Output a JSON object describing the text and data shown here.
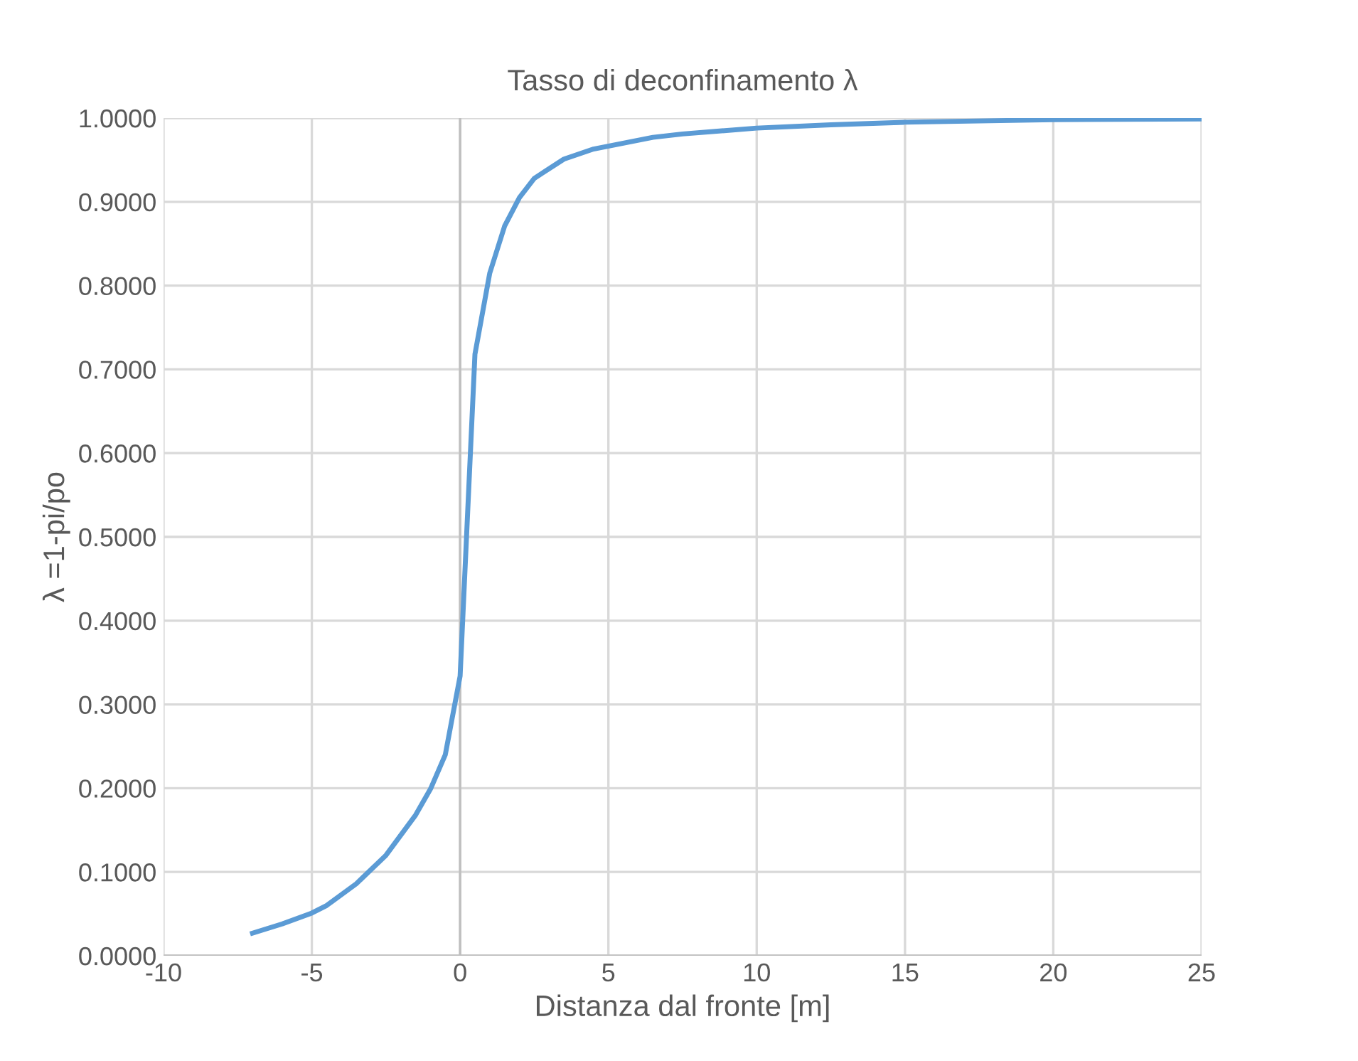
{
  "chart_data": {
    "type": "line",
    "title": "Tasso di deconfinamento λ",
    "xlabel": "Distanza dal fronte [m]",
    "ylabel": "λ =1-pi/po",
    "x": [
      -7,
      -6,
      -5,
      -4.5,
      -3.5,
      -2.5,
      -1.5,
      -1,
      -0.5,
      0,
      0.5,
      1,
      1.5,
      2,
      2.5,
      3.5,
      4.5,
      6.5,
      7.5,
      10,
      12.5,
      15,
      20,
      25
    ],
    "series": [
      {
        "color": "#5b9bd5",
        "values": [
          0.027,
          0.038,
          0.051,
          0.06,
          0.086,
          0.12,
          0.168,
          0.199,
          0.24,
          0.334,
          0.718,
          0.815,
          0.871,
          0.905,
          0.928,
          0.951,
          0.963,
          0.977,
          0.981,
          0.988,
          0.992,
          0.995,
          0.998,
          0.999
        ]
      }
    ],
    "xlim": [
      -10,
      25
    ],
    "xticks": [
      -10,
      -5,
      0,
      5,
      10,
      15,
      20,
      25
    ],
    "ylim": [
      0,
      1
    ],
    "yticks": [
      {
        "value": 0,
        "label": "0.0000"
      },
      {
        "value": 0.1,
        "label": "0.1000"
      },
      {
        "value": 0.2,
        "label": "0.2000"
      },
      {
        "value": 0.3,
        "label": "0.3000"
      },
      {
        "value": 0.4,
        "label": "0.4000"
      },
      {
        "value": 0.5,
        "label": "0.5000"
      },
      {
        "value": 0.6,
        "label": "0.6000"
      },
      {
        "value": 0.7,
        "label": "0.7000"
      },
      {
        "value": 0.8,
        "label": "0.8000"
      },
      {
        "value": 0.9,
        "label": "0.9000"
      },
      {
        "value": 1,
        "label": "1.0000"
      }
    ],
    "grid": true,
    "marker": "none",
    "line_style": "solid"
  }
}
